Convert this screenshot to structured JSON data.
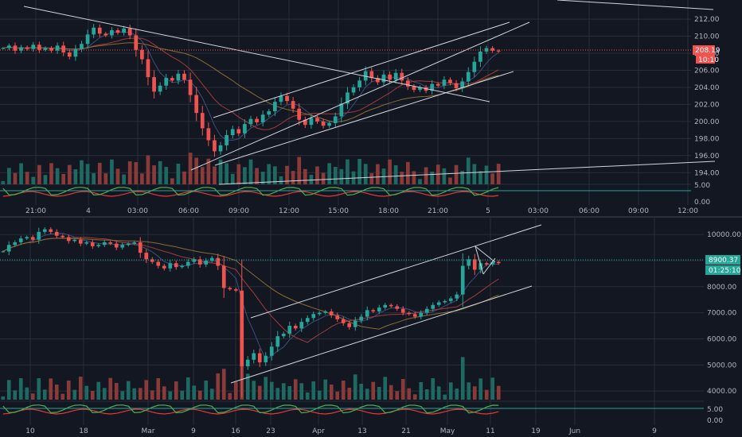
{
  "colors": {
    "background": "#131722",
    "grid": "#2a2e39",
    "up": "#26a69a",
    "down": "#ef5350",
    "volume_up": "#1e6a62",
    "volume_down": "#8a3b39",
    "trendline": "#d1d4dc",
    "ma_red": "#a23b3b",
    "ma_orange": "#8a6a36",
    "ma_blue": "#3a4f7a",
    "osc_green": "#4caf50",
    "osc_red": "#e53935"
  },
  "top_panel": {
    "price_axis_labels": [
      "212.00",
      "210.00",
      "208.00",
      "206.00",
      "204.00",
      "202.00",
      "200.00",
      "198.00",
      "196.00",
      "194.00"
    ],
    "osc_axis_labels": [
      "5.00",
      "0.00"
    ],
    "current_price_label": "208.19",
    "countdown_label": "10:10",
    "time_axis_labels": [
      "21:00",
      "4",
      "03:00",
      "06:00",
      "09:00",
      "12:00",
      "15:00",
      "18:00",
      "21:00",
      "5",
      "03:00",
      "06:00",
      "09:00",
      "12:00"
    ],
    "chart_data": {
      "type": "candlestick",
      "ylim": [
        193,
        213.5
      ],
      "current_price": 208.19,
      "trendlines_note": "ascending channel, descending resistance, long rising support",
      "closes": [
        208.6,
        208.9,
        208.3,
        208.7,
        208.5,
        209.0,
        208.4,
        208.6,
        208.3,
        208.9,
        208.1,
        207.6,
        208.5,
        209.1,
        210.2,
        211.0,
        210.3,
        210.1,
        210.7,
        210.4,
        210.9,
        210.1,
        208.4,
        207.3,
        205.2,
        203.5,
        204.2,
        205.1,
        204.8,
        205.6,
        204.9,
        203.1,
        201.0,
        199.2,
        197.8,
        196.5,
        197.2,
        198.4,
        199.1,
        198.6,
        199.7,
        200.3,
        199.9,
        200.8,
        201.2,
        202.3,
        203.0,
        202.4,
        201.5,
        200.2,
        199.6,
        200.4,
        200.0,
        199.5,
        199.8,
        200.6,
        202.1,
        203.4,
        204.0,
        204.8,
        205.9,
        205.1,
        204.6,
        205.5,
        204.9,
        205.7,
        204.8,
        204.1,
        203.7,
        204.0,
        203.6,
        204.4,
        204.2,
        204.9,
        204.5,
        203.9,
        204.7,
        205.8,
        207.0,
        208.2,
        208.6,
        208.3,
        208.2
      ]
    }
  },
  "bottom_panel": {
    "price_axis_labels": [
      "10000.00",
      "9000.00",
      "8000.00",
      "7000.00",
      "6000.00",
      "5000.00",
      "4000.00"
    ],
    "osc_axis_labels": [
      "5.00",
      "0.00"
    ],
    "current_price_label": "8900.37",
    "countdown_label": "01:25:10",
    "time_axis_labels": [
      "10",
      "18",
      "Mar",
      "9",
      "16",
      "23",
      "Apr",
      "13",
      "21",
      "May",
      "11",
      "19",
      "Jun",
      "9"
    ],
    "chart_data": {
      "type": "candlestick",
      "ylim": [
        3700,
        10400
      ],
      "current_price": 8900.37,
      "closes": [
        9350,
        9600,
        9700,
        9850,
        9900,
        9800,
        10100,
        10200,
        10100,
        9950,
        9900,
        9750,
        9800,
        9650,
        9700,
        9550,
        9600,
        9700,
        9650,
        9500,
        9600,
        9650,
        9700,
        9300,
        9050,
        8950,
        8800,
        8700,
        8900,
        8750,
        8800,
        8950,
        9050,
        8850,
        9000,
        9100,
        8800,
        7950,
        7900,
        7850,
        4950,
        5200,
        5450,
        5100,
        5350,
        5700,
        6100,
        6200,
        6500,
        6400,
        6650,
        6800,
        6950,
        7000,
        7050,
        6900,
        6750,
        6600,
        6450,
        6700,
        6850,
        7100,
        7050,
        7200,
        7300,
        7250,
        7150,
        7000,
        6950,
        6850,
        7000,
        7150,
        7300,
        7400,
        7450,
        7550,
        7700,
        8800,
        9050,
        8650,
        8900,
        8850,
        8950,
        8900
      ]
    }
  }
}
